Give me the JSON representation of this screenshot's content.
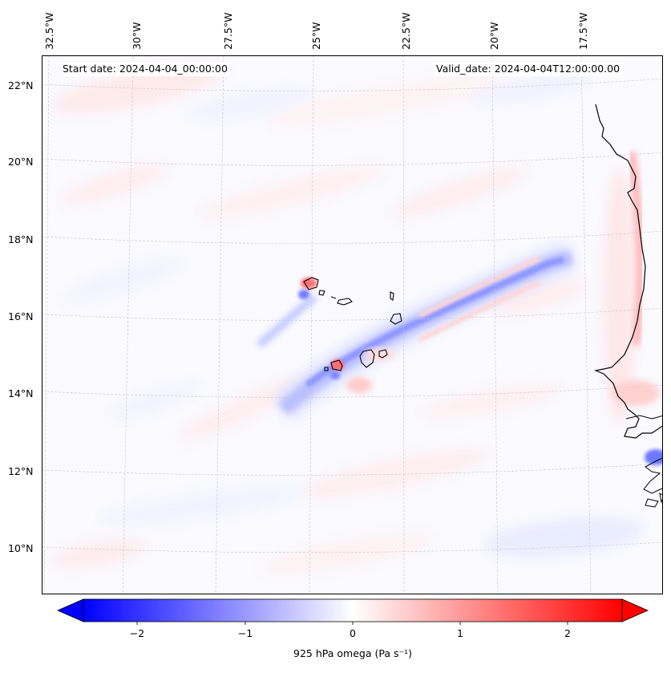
{
  "map": {
    "projection_note": "Cabo Verde region",
    "start_date": "Start date: 2024-04-04_00:00:00",
    "valid_date": "Valid_date: 2024-04-04T12:00:00.00",
    "lon_labels": [
      "32.5°W",
      "30°W",
      "27.5°W",
      "25°W",
      "22.5°W",
      "20°W",
      "17.5°W"
    ],
    "lat_labels": [
      "22°N",
      "20°N",
      "18°N",
      "16°N",
      "14°N",
      "12°N",
      "10°N"
    ],
    "colors": {
      "negative": "#0000ff",
      "positive": "#ff0000",
      "neutral": "#ffffff",
      "coast": "#000000"
    }
  },
  "colorbar": {
    "title": "925 hPa omega (Pa s⁻¹)",
    "ticks": [
      "−2",
      "−1",
      "0",
      "1",
      "2"
    ],
    "tick_values": [
      -2,
      -1,
      0,
      1,
      2
    ],
    "range": [
      -2.5,
      2.5
    ]
  }
}
